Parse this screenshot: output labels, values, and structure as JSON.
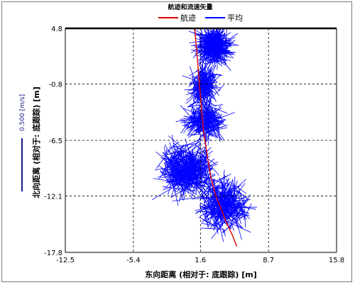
{
  "chart_data": {
    "type": "line",
    "title": "航迹和流速矢量",
    "xlabel": "东向距离 (相对于: 底跟踪) [m]",
    "ylabel": "北向距离 (相对于: 底跟踪) [m]",
    "xlim": [
      -12.5,
      15.8
    ],
    "ylim": [
      -17.8,
      4.8
    ],
    "xticks": [
      "-12.5",
      "-5.4",
      "1.6",
      "8.7",
      "15.8"
    ],
    "yticks": [
      "4.8",
      "-0.8",
      "-6.5",
      "-12.1",
      "-17.8"
    ],
    "grid": true,
    "legend": {
      "position": "top",
      "entries": [
        {
          "name": "航迹",
          "color": "#e00000"
        },
        {
          "name": "平均",
          "color": "#0000ff"
        }
      ]
    },
    "scale_bar": {
      "label": "0.500 [m/s]",
      "color": "#1a1a8c"
    },
    "series": [
      {
        "name": "航迹",
        "color": "#e00000",
        "x": [
          1.0,
          1.3,
          1.5,
          1.7,
          1.9,
          2.3,
          2.7,
          3.2,
          3.8,
          4.3,
          4.9,
          5.4
        ],
        "y": [
          4.8,
          1.5,
          -1.0,
          -3.2,
          -5.5,
          -8.0,
          -10.3,
          -12.1,
          -13.5,
          -14.8,
          -16.0,
          -17.2
        ]
      },
      {
        "name": "平均",
        "color": "#0000ff",
        "clusters": [
          {
            "x": 3.0,
            "y": 3.0,
            "spread_x": 1.6,
            "spread_y": 1.8,
            "count": 260
          },
          {
            "x": 2.0,
            "y": -1.0,
            "spread_x": 1.3,
            "spread_y": 2.0,
            "count": 160
          },
          {
            "x": 2.0,
            "y": -4.5,
            "spread_x": 2.5,
            "spread_y": 2.0,
            "count": 160
          },
          {
            "x": 0.2,
            "y": -9.5,
            "spread_x": 3.2,
            "spread_y": 3.3,
            "count": 360
          },
          {
            "x": 4.0,
            "y": -13.0,
            "spread_x": 3.0,
            "spread_y": 3.0,
            "count": 280
          }
        ]
      }
    ]
  }
}
